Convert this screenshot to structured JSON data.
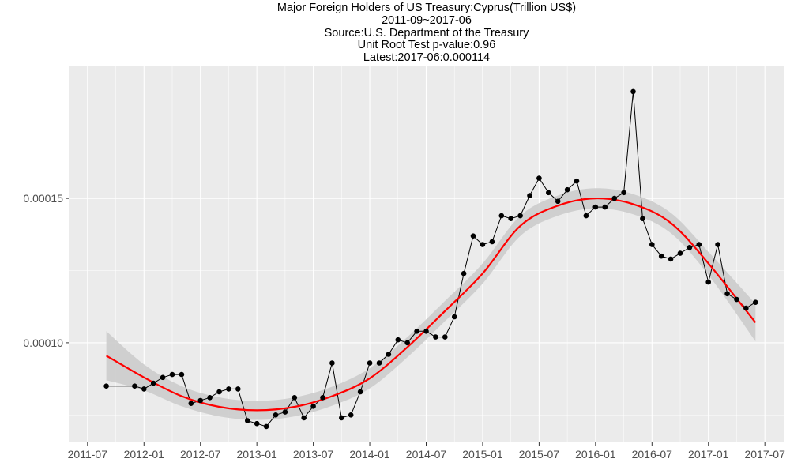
{
  "titles": {
    "line1": "Major Foreign Holders of US Treasury:Cyprus(Trillion US$)",
    "line2": "2011-09~2017-06",
    "line3": "Source:U.S. Department of the Treasury",
    "line4": "Unit Root Test p-value:0.96",
    "line5": "Latest:2017-06:0.000114"
  },
  "colors": {
    "panel": "#ebebeb",
    "grid": "#ffffff",
    "line": "#000000",
    "smooth": "#ff0000",
    "band": "#cccccc"
  },
  "chart_data": {
    "type": "line",
    "title": "Major Foreign Holders of US Treasury:Cyprus(Trillion US$)",
    "subtitle": "2011-09~2017-06",
    "xlabel": "",
    "ylabel": "",
    "x_ticks": [
      "2011-07",
      "2012-01",
      "2012-07",
      "2013-01",
      "2013-07",
      "2014-01",
      "2014-07",
      "2015-01",
      "2015-07",
      "2016-01",
      "2016-07",
      "2017-01",
      "2017-07"
    ],
    "y_ticks": [
      0.0001,
      0.00015
    ],
    "y_tick_labels": [
      "0.00010",
      "0.00015"
    ],
    "ylim": [
      6.55e-05,
      0.000196
    ],
    "xlim": [
      "2011-05",
      "2017-09"
    ],
    "grid": true,
    "series": [
      {
        "style": "line+points",
        "x": [
          "2011-09",
          "2011-12",
          "2012-01",
          "2012-02",
          "2012-03",
          "2012-04",
          "2012-05",
          "2012-06",
          "2012-07",
          "2012-08",
          "2012-09",
          "2012-10",
          "2012-11",
          "2012-12",
          "2013-01",
          "2013-02",
          "2013-03",
          "2013-04",
          "2013-05",
          "2013-06",
          "2013-07",
          "2013-08",
          "2013-09",
          "2013-10",
          "2013-11",
          "2013-12",
          "2014-01",
          "2014-02",
          "2014-03",
          "2014-04",
          "2014-05",
          "2014-06",
          "2014-07",
          "2014-08",
          "2014-09",
          "2014-10",
          "2014-11",
          "2014-12",
          "2015-01",
          "2015-02",
          "2015-03",
          "2015-04",
          "2015-05",
          "2015-06",
          "2015-07",
          "2015-08",
          "2015-09",
          "2015-10",
          "2015-11",
          "2015-12",
          "2016-01",
          "2016-02",
          "2016-03",
          "2016-04",
          "2016-05",
          "2016-06",
          "2016-07",
          "2016-08",
          "2016-09",
          "2016-10",
          "2016-11",
          "2016-12",
          "2017-01",
          "2017-02",
          "2017-03",
          "2017-04",
          "2017-05",
          "2017-06"
        ],
        "y": [
          8.5e-05,
          8.5e-05,
          8.4e-05,
          8.6e-05,
          8.8e-05,
          8.9e-05,
          8.9e-05,
          7.9e-05,
          8e-05,
          8.1e-05,
          8.3e-05,
          8.4e-05,
          8.4e-05,
          7.3e-05,
          7.2e-05,
          7.1e-05,
          7.5e-05,
          7.6e-05,
          8.1e-05,
          7.4e-05,
          7.8e-05,
          8.1e-05,
          9.3e-05,
          7.4e-05,
          7.5e-05,
          8.3e-05,
          9.3e-05,
          9.3e-05,
          9.6e-05,
          0.000101,
          0.0001,
          0.000104,
          0.000104,
          0.000102,
          0.000102,
          0.000109,
          0.000124,
          0.000137,
          0.000134,
          0.000135,
          0.000144,
          0.000143,
          0.000144,
          0.000151,
          0.000157,
          0.000152,
          0.000149,
          0.000153,
          0.000156,
          0.000144,
          0.000147,
          0.000147,
          0.00015,
          0.000152,
          0.000187,
          0.000143,
          0.000134,
          0.00013,
          0.000129,
          0.000131,
          0.000133,
          0.000134,
          0.000121,
          0.000134,
          0.000117,
          0.000115,
          0.000112,
          0.000114
        ]
      },
      {
        "style": "smooth",
        "x": [
          "2011-09",
          "2012-01",
          "2012-05",
          "2012-09",
          "2013-01",
          "2013-05",
          "2013-09",
          "2014-01",
          "2014-05",
          "2014-09",
          "2015-01",
          "2015-05",
          "2015-09",
          "2016-01",
          "2016-05",
          "2016-09",
          "2017-01",
          "2017-06"
        ],
        "y": [
          9.55e-05,
          8.8e-05,
          8.15e-05,
          7.78e-05,
          7.66e-05,
          7.78e-05,
          8.15e-05,
          8.77e-05,
          9.85e-05,
          0.000111,
          0.000124,
          0.0001405,
          0.0001475,
          0.00015,
          0.000148,
          0.0001415,
          0.0001275,
          0.000107
        ],
        "band_half_width": [
          8.5e-06,
          4.5e-06,
          3.5e-06,
          3.3e-06,
          3.3e-06,
          3.3e-06,
          3.3e-06,
          3.5e-06,
          3.5e-06,
          3.5e-06,
          3.5e-06,
          3.5e-06,
          3.5e-06,
          3.5e-06,
          3.5e-06,
          3.5e-06,
          4e-06,
          6.5e-06
        ]
      }
    ]
  }
}
